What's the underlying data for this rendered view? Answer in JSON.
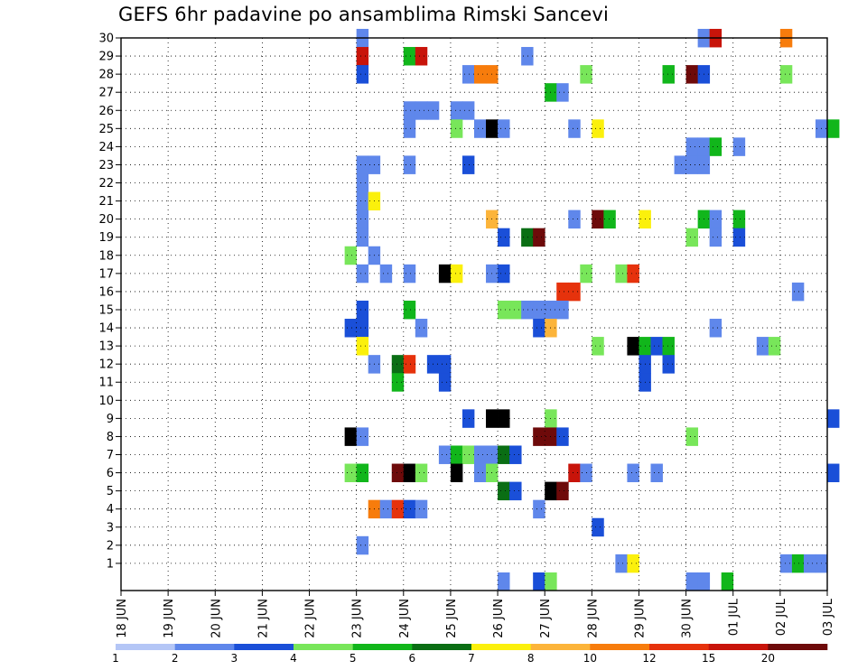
{
  "chart_data": {
    "type": "heatmap",
    "title": "GEFS 6hr padavine po ansamblima Rimski Sancevi",
    "x_tick_labels": [
      "18 JUN",
      "19 JUN",
      "20 JUN",
      "21 JUN",
      "22 JUN",
      "23 JUN",
      "24 JUN",
      "25 JUN",
      "26 JUN",
      "27 JUN",
      "28 JUN",
      "29 JUN",
      "30 JUN",
      "01 JUL",
      "02 JUL",
      "03 JUL"
    ],
    "y_tick_labels": [
      "1",
      "2",
      "3",
      "4",
      "5",
      "6",
      "7",
      "8",
      "9",
      "10",
      "11",
      "12",
      "13",
      "14",
      "15",
      "16",
      "17",
      "18",
      "19",
      "20",
      "21",
      "22",
      "23",
      "24",
      "25",
      "26",
      "27",
      "28",
      "29",
      "30"
    ],
    "x_range_steps": [
      0,
      60
    ],
    "y_range_members": [
      0,
      30
    ],
    "x_step_hours": 6,
    "grid": true,
    "legend_position": "bottom",
    "colorbar": {
      "labels": [
        "1",
        "2",
        "3",
        "4",
        "5",
        "6",
        "7",
        "8",
        "10",
        "12",
        "15",
        "20"
      ],
      "colors": [
        "#b4c6f6",
        "#5f87eb",
        "#1a4fd8",
        "#78e65a",
        "#11b61b",
        "#0a6e14",
        "#fbf00c",
        "#fcb43a",
        "#f77c0c",
        "#e6320c",
        "#c8140a",
        "#6e0a0a"
      ]
    },
    "cells": [
      [
        20,
        30,
        1
      ],
      [
        49,
        30,
        1
      ],
      [
        50,
        30,
        10
      ],
      [
        56,
        30,
        8
      ],
      [
        20,
        29,
        10
      ],
      [
        24,
        29,
        4
      ],
      [
        25,
        29,
        10
      ],
      [
        34,
        29,
        1
      ],
      [
        20,
        28,
        2
      ],
      [
        29,
        28,
        1
      ],
      [
        30,
        28,
        8
      ],
      [
        31,
        28,
        8
      ],
      [
        39,
        28,
        3
      ],
      [
        46,
        28,
        4
      ],
      [
        48,
        28,
        11
      ],
      [
        49,
        28,
        2
      ],
      [
        56,
        28,
        3
      ],
      [
        36,
        27,
        4
      ],
      [
        37,
        27,
        1
      ],
      [
        24,
        26,
        1
      ],
      [
        25,
        26,
        1
      ],
      [
        26,
        26,
        1
      ],
      [
        28,
        26,
        1
      ],
      [
        29,
        26,
        1
      ],
      [
        24,
        25,
        1
      ],
      [
        28,
        25,
        3
      ],
      [
        30,
        25,
        1
      ],
      [
        31,
        25,
        12
      ],
      [
        32,
        25,
        1
      ],
      [
        38,
        25,
        1
      ],
      [
        40,
        25,
        6
      ],
      [
        59,
        25,
        1
      ],
      [
        60,
        25,
        4
      ],
      [
        48,
        24,
        1
      ],
      [
        49,
        24,
        1
      ],
      [
        50,
        24,
        4
      ],
      [
        52,
        24,
        1
      ],
      [
        20,
        23,
        1
      ],
      [
        21,
        23,
        1
      ],
      [
        24,
        23,
        1
      ],
      [
        29,
        23,
        2
      ],
      [
        47,
        23,
        1
      ],
      [
        48,
        23,
        1
      ],
      [
        49,
        23,
        1
      ],
      [
        20,
        22,
        1
      ],
      [
        20,
        21,
        1
      ],
      [
        21,
        21,
        6
      ],
      [
        20,
        20,
        1
      ],
      [
        31,
        20,
        7
      ],
      [
        38,
        20,
        1
      ],
      [
        40,
        20,
        11
      ],
      [
        41,
        20,
        4
      ],
      [
        44,
        20,
        6
      ],
      [
        49,
        20,
        4
      ],
      [
        50,
        20,
        1
      ],
      [
        52,
        20,
        4
      ],
      [
        20,
        19,
        1
      ],
      [
        32,
        19,
        2
      ],
      [
        34,
        19,
        5
      ],
      [
        35,
        19,
        11
      ],
      [
        48,
        19,
        3
      ],
      [
        50,
        19,
        1
      ],
      [
        52,
        19,
        2
      ],
      [
        19,
        18,
        3
      ],
      [
        21,
        18,
        1
      ],
      [
        20,
        17,
        1
      ],
      [
        22,
        17,
        1
      ],
      [
        24,
        17,
        1
      ],
      [
        27,
        17,
        12
      ],
      [
        28,
        17,
        6
      ],
      [
        31,
        17,
        1
      ],
      [
        32,
        17,
        2
      ],
      [
        39,
        17,
        3
      ],
      [
        42,
        17,
        3
      ],
      [
        43,
        17,
        9
      ],
      [
        37,
        16,
        9
      ],
      [
        38,
        16,
        9
      ],
      [
        57,
        16,
        1
      ],
      [
        20,
        15,
        2
      ],
      [
        24,
        15,
        4
      ],
      [
        32,
        15,
        3
      ],
      [
        33,
        15,
        3
      ],
      [
        34,
        15,
        1
      ],
      [
        35,
        15,
        1
      ],
      [
        36,
        15,
        1
      ],
      [
        37,
        15,
        1
      ],
      [
        19,
        14,
        2
      ],
      [
        20,
        14,
        2
      ],
      [
        25,
        14,
        1
      ],
      [
        35,
        14,
        2
      ],
      [
        36,
        14,
        7
      ],
      [
        50,
        14,
        1
      ],
      [
        20,
        13,
        6
      ],
      [
        40,
        13,
        3
      ],
      [
        43,
        13,
        12
      ],
      [
        44,
        13,
        4
      ],
      [
        45,
        13,
        2
      ],
      [
        46,
        13,
        4
      ],
      [
        54,
        13,
        1
      ],
      [
        55,
        13,
        3
      ],
      [
        21,
        12,
        1
      ],
      [
        23,
        12,
        5
      ],
      [
        24,
        12,
        9
      ],
      [
        26,
        12,
        2
      ],
      [
        27,
        12,
        2
      ],
      [
        44,
        12,
        2
      ],
      [
        46,
        12,
        2
      ],
      [
        23,
        11,
        4
      ],
      [
        27,
        11,
        2
      ],
      [
        44,
        11,
        2
      ],
      [
        29,
        9,
        2
      ],
      [
        31,
        9,
        12
      ],
      [
        32,
        9,
        12
      ],
      [
        36,
        9,
        3
      ],
      [
        60,
        9,
        2
      ],
      [
        19,
        8,
        12
      ],
      [
        20,
        8,
        1
      ],
      [
        35,
        8,
        11
      ],
      [
        36,
        8,
        11
      ],
      [
        37,
        8,
        2
      ],
      [
        48,
        8,
        3
      ],
      [
        27,
        7,
        1
      ],
      [
        28,
        7,
        4
      ],
      [
        29,
        7,
        3
      ],
      [
        30,
        7,
        1
      ],
      [
        31,
        7,
        1
      ],
      [
        32,
        7,
        5
      ],
      [
        33,
        7,
        2
      ],
      [
        19,
        6,
        3
      ],
      [
        20,
        6,
        4
      ],
      [
        23,
        6,
        11
      ],
      [
        24,
        6,
        12
      ],
      [
        25,
        6,
        3
      ],
      [
        28,
        6,
        12
      ],
      [
        30,
        6,
        1
      ],
      [
        31,
        6,
        3
      ],
      [
        38,
        6,
        10
      ],
      [
        39,
        6,
        1
      ],
      [
        43,
        6,
        1
      ],
      [
        45,
        6,
        1
      ],
      [
        60,
        6,
        2
      ],
      [
        32,
        5,
        5
      ],
      [
        33,
        5,
        2
      ],
      [
        36,
        5,
        12
      ],
      [
        37,
        5,
        11
      ],
      [
        21,
        4,
        8
      ],
      [
        22,
        4,
        1
      ],
      [
        23,
        4,
        9
      ],
      [
        24,
        4,
        2
      ],
      [
        25,
        4,
        1
      ],
      [
        35,
        4,
        1
      ],
      [
        40,
        3,
        2
      ],
      [
        20,
        2,
        1
      ],
      [
        42,
        1,
        1
      ],
      [
        43,
        1,
        6
      ],
      [
        56,
        1,
        1
      ],
      [
        57,
        1,
        4
      ],
      [
        58,
        1,
        1
      ],
      [
        59,
        1,
        1
      ],
      [
        32,
        0,
        1
      ],
      [
        35,
        0,
        2
      ],
      [
        36,
        0,
        3
      ],
      [
        48,
        0,
        1
      ],
      [
        49,
        0,
        1
      ],
      [
        51,
        0,
        4
      ]
    ]
  }
}
